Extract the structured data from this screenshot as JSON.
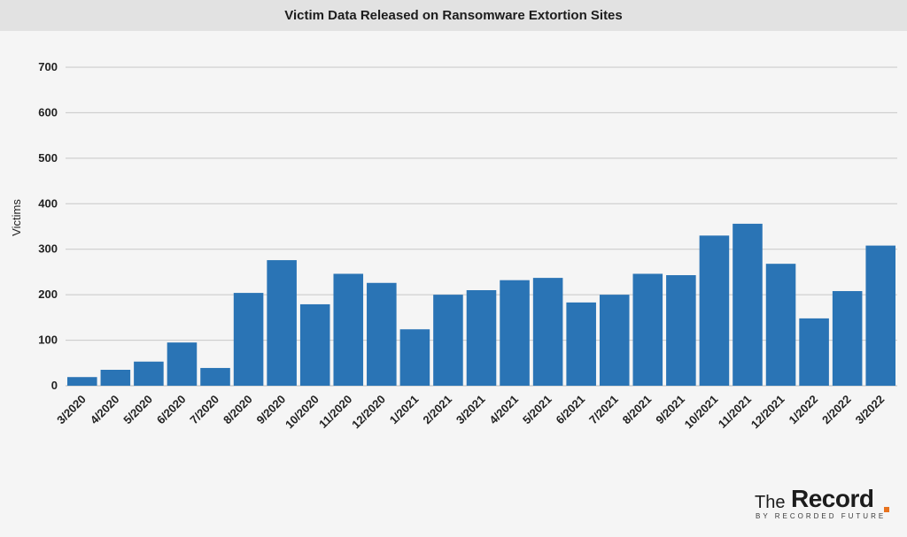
{
  "header": {
    "title": "Victim Data Released on Ransomware Extortion Sites"
  },
  "logo": {
    "the": "The",
    "record": "Record",
    "tagline": "BY RECORDED FUTURE",
    "accent_color": "#e8731f"
  },
  "chart_data": {
    "type": "bar",
    "title": "Victim Data Released on Ransomware Extortion Sites",
    "xlabel": "",
    "ylabel": "Victims",
    "ylim": [
      0,
      700
    ],
    "yticks": [
      0,
      100,
      200,
      300,
      400,
      500,
      600,
      700
    ],
    "grid": true,
    "bar_color": "#2a74b5",
    "categories": [
      "3/2020",
      "4/2020",
      "5/2020",
      "6/2020",
      "7/2020",
      "8/2020",
      "9/2020",
      "10/2020",
      "11/2020",
      "12/2020",
      "1/2021",
      "2/2021",
      "3/2021",
      "4/2021",
      "5/2021",
      "6/2021",
      "7/2021",
      "8/2021",
      "9/2021",
      "10/2021",
      "11/2021",
      "12/2021",
      "1/2022",
      "2/2022",
      "3/2022"
    ],
    "values": [
      19,
      35,
      53,
      95,
      39,
      204,
      276,
      179,
      246,
      226,
      124,
      200,
      210,
      232,
      237,
      183,
      200,
      246,
      243,
      330,
      356,
      268,
      148,
      208,
      308
    ]
  }
}
